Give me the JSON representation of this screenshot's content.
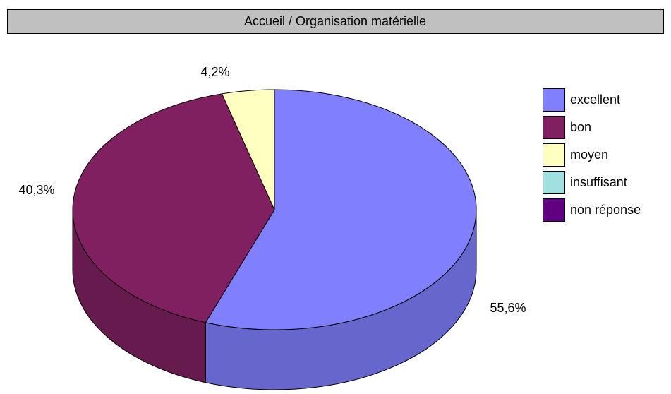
{
  "chart_data": {
    "type": "pie3d",
    "title": "Accueil / Organisation matérielle",
    "categories": [
      "excellent",
      "bon",
      "moyen",
      "insuffisant",
      "non réponse"
    ],
    "values": [
      55.6,
      40.3,
      4.2,
      0,
      0
    ],
    "value_labels": [
      "55,6%",
      "40,3%",
      "4,2%",
      null,
      null
    ],
    "colors": [
      "#8080ff",
      "#802060",
      "#ffffc0",
      "#a0e0e0",
      "#600080"
    ],
    "legend": "right"
  }
}
